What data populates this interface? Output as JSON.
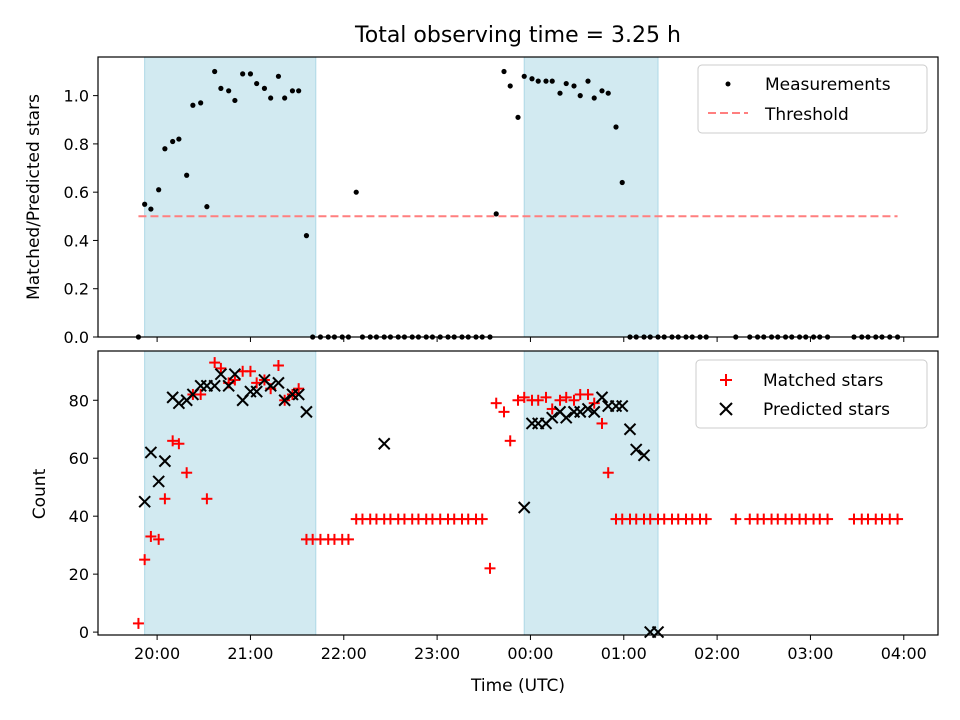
{
  "title": "Total observing time = 3.25 h",
  "colors": {
    "measurement": "#000000",
    "threshold": "#ff7f7f",
    "matched": "#ff0000",
    "predicted": "#000000",
    "shade": "#add8e6"
  },
  "chart_data": [
    {
      "type": "scatter",
      "ylabel": "Matched/Predicted stars",
      "ylim": [
        0,
        1.16
      ],
      "yticks": [
        0.0,
        0.2,
        0.4,
        0.6,
        0.8,
        1.0
      ],
      "ytick_labels": [
        "0.0",
        "0.2",
        "0.4",
        "0.6",
        "0.8",
        "1.0"
      ],
      "xlim": [
        "19:22",
        "04:22"
      ],
      "xtick_labels": [
        "20:00",
        "21:00",
        "22:00",
        "23:00",
        "00:00",
        "01:00",
        "02:00",
        "03:00",
        "04:00"
      ],
      "legend_position": "upper right",
      "legend": [
        "Measurements",
        "Threshold"
      ],
      "shaded_intervals": [
        [
          "19:52",
          "21:42"
        ],
        [
          "23:56",
          "01:22"
        ]
      ],
      "threshold": {
        "name": "Threshold",
        "value": 0.5,
        "x": [
          "19:48",
          "03:56"
        ],
        "style": "dashed"
      },
      "series": [
        {
          "name": "Measurements",
          "x": [
            "19:48",
            "19:52",
            "19:56",
            "20:01",
            "20:05",
            "20:10",
            "20:14",
            "20:19",
            "20:23",
            "20:28",
            "20:32",
            "20:37",
            "20:41",
            "20:46",
            "20:50",
            "20:55",
            "21:00",
            "21:04",
            "21:09",
            "21:13",
            "21:18",
            "21:22",
            "21:27",
            "21:31",
            "21:36",
            "21:40",
            "21:45",
            "21:50",
            "21:54",
            "21:59",
            "22:03",
            "22:08",
            "22:12",
            "22:17",
            "22:21",
            "22:26",
            "22:30",
            "22:35",
            "22:39",
            "22:44",
            "22:48",
            "22:53",
            "22:57",
            "23:02",
            "23:07",
            "23:11",
            "23:16",
            "23:20",
            "23:25",
            "23:29",
            "23:34",
            "23:38",
            "23:43",
            "23:47",
            "23:52",
            "23:56",
            "00:01",
            "00:05",
            "00:10",
            "00:14",
            "00:19",
            "00:23",
            "00:28",
            "00:32",
            "00:37",
            "00:41",
            "00:46",
            "00:50",
            "00:55",
            "00:59",
            "01:04",
            "01:08",
            "01:13",
            "01:17",
            "01:22",
            "01:26",
            "01:31",
            "01:35",
            "01:40",
            "01:44",
            "01:49",
            "01:53",
            "02:12",
            "02:21",
            "02:26",
            "02:30",
            "02:35",
            "02:39",
            "02:44",
            "02:48",
            "02:53",
            "02:57",
            "03:02",
            "03:06",
            "03:11",
            "03:28",
            "03:33",
            "03:37",
            "03:42",
            "03:46",
            "03:51",
            "03:56"
          ],
          "values": [
            0.0,
            0.55,
            0.53,
            0.61,
            0.78,
            0.81,
            0.82,
            0.67,
            0.96,
            0.97,
            0.54,
            1.1,
            1.03,
            1.02,
            0.98,
            1.09,
            1.09,
            1.05,
            1.03,
            0.99,
            1.08,
            0.99,
            1.02,
            1.02,
            0.42,
            0.0,
            0.0,
            0.0,
            0.0,
            0.0,
            0.0,
            0.6,
            0.0,
            0.0,
            0.0,
            0.0,
            0.0,
            0.0,
            0.0,
            0.0,
            0.0,
            0.0,
            0.0,
            0.0,
            0.0,
            0.0,
            0.0,
            0.0,
            0.0,
            0.0,
            0.0,
            0.51,
            1.1,
            1.04,
            0.91,
            1.08,
            1.07,
            1.06,
            1.06,
            1.06,
            1.01,
            1.05,
            1.04,
            1.0,
            1.06,
            0.99,
            1.02,
            1.01,
            0.87,
            0.64,
            0.0,
            0.0,
            0.0,
            0.0,
            0.0,
            0.0,
            0.0,
            0.0,
            0.0,
            0.0,
            0.0,
            0.0,
            0.0,
            0.0,
            0.0,
            0.0,
            0.0,
            0.0,
            0.0,
            0.0,
            0.0,
            0.0,
            0.0,
            0.0,
            0.0,
            0.0,
            0.0,
            0.0,
            0.0,
            0.0,
            0.0,
            0.0
          ]
        }
      ]
    },
    {
      "type": "scatter",
      "xlabel": "Time (UTC)",
      "ylabel": "Count",
      "ylim": [
        -1,
        97
      ],
      "yticks": [
        0,
        20,
        40,
        60,
        80
      ],
      "ytick_labels": [
        "0",
        "20",
        "40",
        "60",
        "80"
      ],
      "xlim": [
        "19:22",
        "04:22"
      ],
      "xtick_labels": [
        "20:00",
        "21:00",
        "22:00",
        "23:00",
        "00:00",
        "01:00",
        "02:00",
        "03:00",
        "04:00"
      ],
      "legend_position": "upper right",
      "legend": [
        "Matched stars",
        "Predicted stars"
      ],
      "shaded_intervals": [
        [
          "19:52",
          "21:42"
        ],
        [
          "23:56",
          "01:22"
        ]
      ],
      "series": [
        {
          "name": "Matched stars",
          "marker": "+",
          "x": [
            "19:48",
            "19:52",
            "19:56",
            "20:01",
            "20:05",
            "20:10",
            "20:14",
            "20:19",
            "20:23",
            "20:28",
            "20:32",
            "20:37",
            "20:41",
            "20:46",
            "20:50",
            "20:55",
            "21:00",
            "21:04",
            "21:09",
            "21:13",
            "21:18",
            "21:22",
            "21:27",
            "21:31",
            "21:36",
            "21:40",
            "21:45",
            "21:50",
            "21:54",
            "21:59",
            "22:03",
            "22:08",
            "22:12",
            "22:17",
            "22:21",
            "22:26",
            "22:30",
            "22:35",
            "22:39",
            "22:44",
            "22:48",
            "22:53",
            "22:57",
            "23:02",
            "23:07",
            "23:11",
            "23:16",
            "23:20",
            "23:25",
            "23:29",
            "23:34",
            "23:38",
            "23:43",
            "23:47",
            "23:52",
            "23:56",
            "00:01",
            "00:05",
            "00:10",
            "00:14",
            "00:19",
            "00:23",
            "00:28",
            "00:32",
            "00:37",
            "00:41",
            "00:46",
            "00:50",
            "00:55",
            "00:59",
            "01:04",
            "01:08",
            "01:13",
            "01:17",
            "01:22",
            "01:26",
            "01:31",
            "01:35",
            "01:40",
            "01:44",
            "01:49",
            "01:53",
            "02:12",
            "02:21",
            "02:26",
            "02:30",
            "02:35",
            "02:39",
            "02:44",
            "02:48",
            "02:53",
            "02:57",
            "03:02",
            "03:06",
            "03:11",
            "03:28",
            "03:33",
            "03:37",
            "03:42",
            "03:46",
            "03:51",
            "03:56"
          ],
          "values": [
            3,
            25,
            33,
            32,
            46,
            66,
            65,
            55,
            82,
            82,
            46,
            93,
            91,
            86,
            87,
            90,
            90,
            86,
            87,
            84,
            92,
            80,
            82,
            84,
            32,
            32,
            32,
            32,
            32,
            32,
            32,
            39,
            39,
            39,
            39,
            39,
            39,
            39,
            39,
            39,
            39,
            39,
            39,
            39,
            39,
            39,
            39,
            39,
            39,
            39,
            22,
            79,
            76,
            66,
            80,
            81,
            80,
            80,
            81,
            77,
            80,
            81,
            80,
            82,
            82,
            79,
            72,
            55,
            39,
            39,
            39,
            39,
            39,
            39,
            39,
            39,
            39,
            39,
            39,
            39,
            39,
            39,
            39,
            39,
            39,
            39,
            39,
            39,
            39,
            39,
            39,
            39,
            39,
            39,
            39,
            39,
            39,
            39,
            39,
            39,
            39,
            39
          ]
        },
        {
          "name": "Predicted stars",
          "marker": "x",
          "x": [
            "19:52",
            "19:56",
            "20:01",
            "20:05",
            "20:10",
            "20:14",
            "20:19",
            "20:23",
            "20:28",
            "20:32",
            "20:37",
            "20:41",
            "20:46",
            "20:50",
            "20:55",
            "21:00",
            "21:04",
            "21:09",
            "21:13",
            "21:18",
            "21:22",
            "21:27",
            "21:31",
            "21:36",
            "22:26",
            "23:56",
            "00:01",
            "00:05",
            "00:10",
            "00:14",
            "00:19",
            "00:23",
            "00:28",
            "00:32",
            "00:37",
            "00:41",
            "00:46",
            "00:50",
            "00:55",
            "00:59",
            "01:04",
            "01:08",
            "01:13",
            "01:17",
            "01:22"
          ],
          "values": [
            45,
            62,
            52,
            59,
            81,
            79,
            80,
            82,
            85,
            85,
            85,
            89,
            85,
            89,
            80,
            83,
            83,
            87,
            85,
            86,
            80,
            82,
            82,
            76,
            65,
            43,
            72,
            72,
            72,
            74,
            76,
            74,
            76,
            76,
            77,
            76,
            81,
            78,
            78,
            78,
            70,
            63,
            61,
            0,
            0
          ]
        }
      ]
    }
  ]
}
